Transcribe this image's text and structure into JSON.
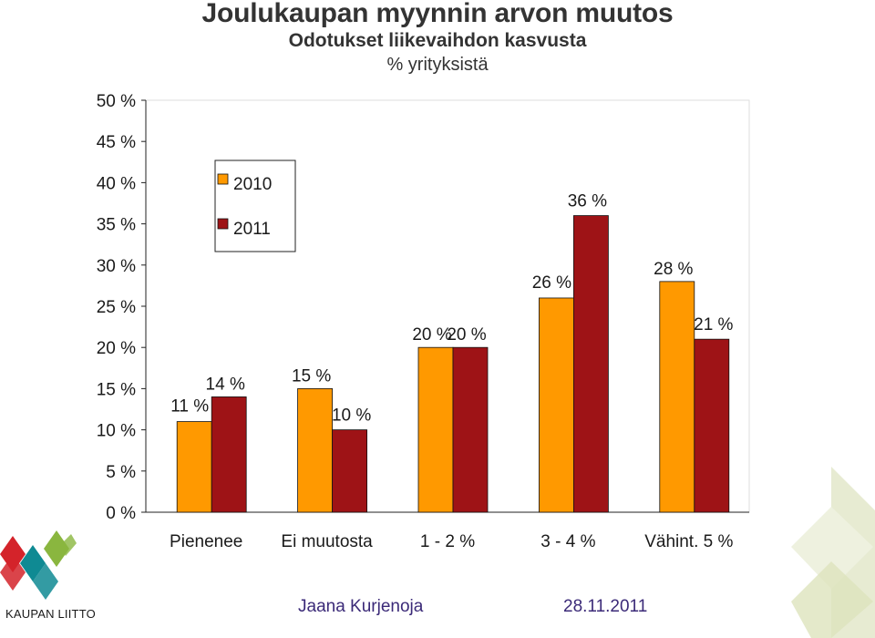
{
  "chart_data": {
    "type": "bar",
    "title": "Joulukaupan myynnin arvon muutos",
    "subtitle": "Odotukset liikevaihdon kasvusta",
    "subtitle2": "% yrityksistä",
    "categories": [
      "Pienenee",
      "Ei muutosta",
      "1 - 2 %",
      "3 - 4 %",
      "Vähint. 5 %"
    ],
    "series": [
      {
        "name": "2010",
        "values": [
          11,
          15,
          20,
          26,
          28
        ],
        "color": "#ff9900"
      },
      {
        "name": "2011",
        "values": [
          14,
          10,
          20,
          36,
          21
        ],
        "color": "#9e1316"
      }
    ],
    "value_labels": [
      [
        "11 %",
        "15 %",
        "20 %",
        "26 %",
        "28 %"
      ],
      [
        "14 %",
        "10 %",
        "20 %",
        "36 %",
        "21 %"
      ]
    ],
    "ylim": [
      0,
      50
    ],
    "yticks": [
      "0 %",
      "5 %",
      "10 %",
      "15 %",
      "20 %",
      "25 %",
      "30 %",
      "35 %",
      "40 %",
      "45 %",
      "50 %"
    ],
    "ytick_values": [
      0,
      5,
      10,
      15,
      20,
      25,
      30,
      35,
      40,
      45,
      50
    ],
    "legend_position": "top-left",
    "grid": false
  },
  "footer": {
    "author": "Jaana Kurjenoja",
    "date": "28.11.2011",
    "logo_text": "KAUPAN LIITTO"
  },
  "decor_colors": {
    "logo_red": "#d4232a",
    "logo_teal": "#0f8a93",
    "logo_green": "#8ab63f",
    "deco_light": "#e7ebd2"
  }
}
